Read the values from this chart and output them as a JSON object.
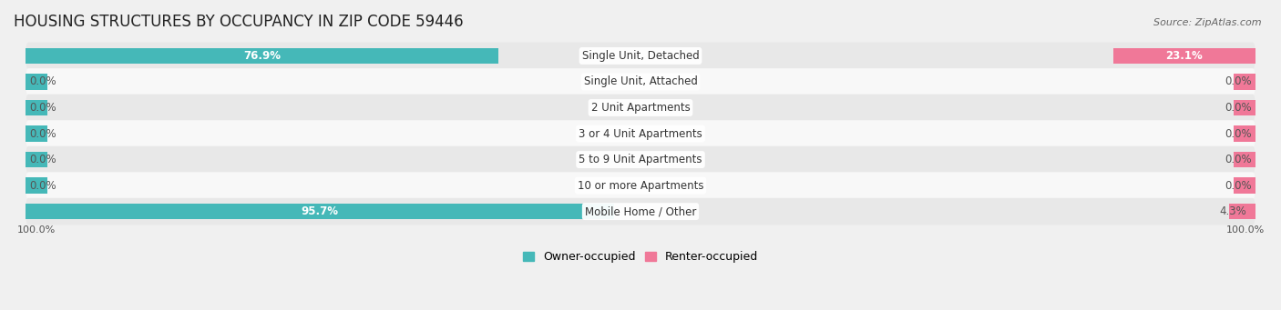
{
  "title": "HOUSING STRUCTURES BY OCCUPANCY IN ZIP CODE 59446",
  "source": "Source: ZipAtlas.com",
  "categories": [
    "Single Unit, Detached",
    "Single Unit, Attached",
    "2 Unit Apartments",
    "3 or 4 Unit Apartments",
    "5 to 9 Unit Apartments",
    "10 or more Apartments",
    "Mobile Home / Other"
  ],
  "owner_values": [
    76.9,
    0.0,
    0.0,
    0.0,
    0.0,
    0.0,
    95.7
  ],
  "renter_values": [
    23.1,
    0.0,
    0.0,
    0.0,
    0.0,
    0.0,
    4.3
  ],
  "owner_color": "#45b8b8",
  "renter_color": "#f07898",
  "background_color": "#f0f0f0",
  "row_bg_colors": [
    "#e8e8e8",
    "#f8f8f8"
  ],
  "title_fontsize": 12,
  "bar_label_fontsize": 8.5,
  "category_fontsize": 8.5,
  "legend_fontsize": 9,
  "bar_height": 0.62,
  "total_width": 100.0,
  "min_bar_display": 3.5,
  "x_left_label": "100.0%",
  "x_right_label": "100.0%"
}
